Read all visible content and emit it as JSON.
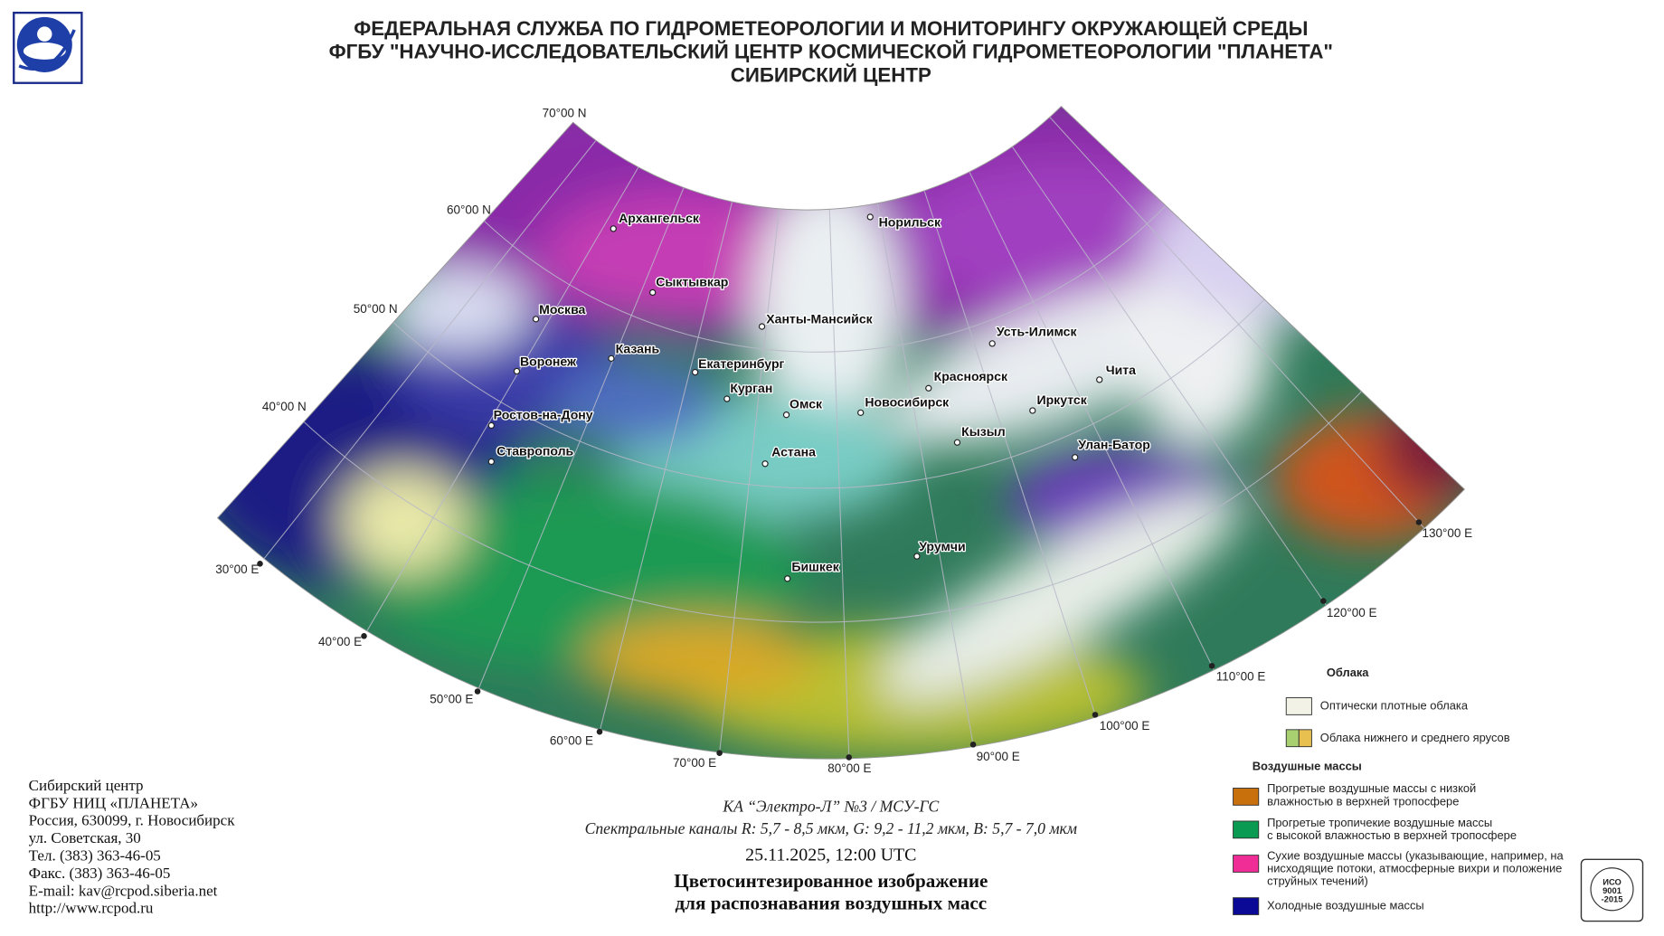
{
  "header": {
    "lines": [
      "ФЕДЕРАЛЬНАЯ СЛУЖБА ПО ГИДРОМЕТЕОРОЛОГИИ И МОНИТОРИНГУ ОКРУЖАЮЩЕЙ СРЕДЫ",
      "ФГБУ \"НАУЧНО-ИССЛЕДОВАТЕЛЬСКИЙ ЦЕНТР КОСМИЧЕСКОЙ ГИДРОМЕТЕОРОЛОГИИ \"ПЛАНЕТА\"",
      "СИБИРСКИЙ ЦЕНТР"
    ]
  },
  "map": {
    "latitude_labels": [
      "70°00 N",
      "60°00 N",
      "50°00 N",
      "40°00 N"
    ],
    "longitude_labels": [
      "30°00 E",
      "40°00 E",
      "50°00 E",
      "60°00 E",
      "70°00 E",
      "80°00 E",
      "90°00 E",
      "100°00 E",
      "110°00 E",
      "120°00 E",
      "130°00 E"
    ],
    "cities": [
      "Архангельск",
      "Сыктывкар",
      "Москва",
      "Казань",
      "Воронеж",
      "Ростов-на-Дону",
      "Ставрополь",
      "Екатеринбург",
      "Курган",
      "Омск",
      "Астана",
      "Ханты-Мансийск",
      "Норильск",
      "Новосибирск",
      "Красноярск",
      "Кызыл",
      "Усть-Илимск",
      "Иркутск",
      "Чита",
      "Улан-Батор",
      "Урумчи",
      "Бишкек"
    ]
  },
  "legend": {
    "clouds_title": "Облака",
    "clouds": [
      {
        "lines": [
          "Оптически плотные облака"
        ]
      },
      {
        "lines": [
          "Облака нижнего и среднего ярусов"
        ]
      }
    ],
    "air_title": "Воздушные массы",
    "air": [
      {
        "lines": [
          "Прогретые воздушные массы с низкой",
          "влажностью в верхней тропосфере"
        ]
      },
      {
        "lines": [
          "Прогретые тропичекие воздушные массы",
          "с высокой влажностью в верхней тропосфере"
        ]
      },
      {
        "lines": [
          "Сухие воздушные массы (указывающие, например, на",
          "нисходящие потоки, атмосферные вихри и положение",
          "струйных течений)"
        ]
      },
      {
        "lines": [
          "Холодные воздушные массы"
        ]
      }
    ]
  },
  "contacts": {
    "lines": [
      "Сибирский центр",
      "ФГБУ НИЦ «ПЛАНЕТА»",
      "Россия, 630099, г. Новосибирск",
      "ул. Советская, 30",
      "Тел. (383) 363-46-05",
      "Факс. (383) 363-46-05",
      "E-mail: kav@rcpod.siberia.net",
      "http://www.rcpod.ru"
    ]
  },
  "caption": {
    "satellite": "КА “Электро-Л” №3 / МСУ-ГС",
    "channels": "Спектральные каналы R: 5,7 - 8,5 мкм, G: 9,2 - 11,2 мкм, B: 5,7 - 7,0 мкм",
    "datetime": "25.11.2025, 12:00 UTC",
    "title_lines": [
      "Цветосинтезированное изображение",
      "для распознавания воздушных масс"
    ]
  },
  "badge": {
    "lines": [
      "ИСО",
      "9001",
      "-2015"
    ]
  }
}
